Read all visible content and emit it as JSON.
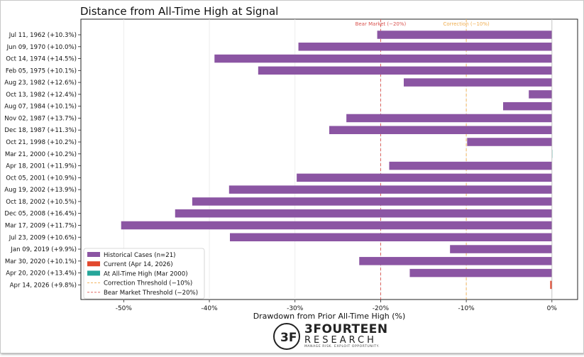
{
  "chart_data": {
    "type": "bar",
    "orientation": "horizontal",
    "title": "Distance from All-Time High at Signal",
    "xlabel": "Drawdown from Prior All-Time High (%)",
    "xlim": [
      -55,
      3
    ],
    "xticks": [
      "-50%",
      "-40%",
      "-30%",
      "-20%",
      "-10%",
      "0%"
    ],
    "xtick_values": [
      -50,
      -40,
      -30,
      -20,
      -10,
      0
    ],
    "grid": true,
    "legend_placement": "lower-left",
    "categories": [
      "Jul 11, 1962  (+10.3%)",
      "Jun 09, 1970  (+10.0%)",
      "Oct 14, 1974  (+14.5%)",
      "Feb 05, 1975  (+10.1%)",
      "Aug 23, 1982  (+12.6%)",
      "Oct 13, 1982  (+12.4%)",
      "Aug 07, 1984  (+10.1%)",
      "Nov 02, 1987  (+13.7%)",
      "Dec 18, 1987  (+11.3%)",
      "Oct 21, 1998  (+10.2%)",
      "Mar 21, 2000  (+10.2%)",
      "Apr 18, 2001  (+11.9%)",
      "Oct 05, 2001  (+10.9%)",
      "Aug 19, 2002  (+13.9%)",
      "Oct 18, 2002  (+10.5%)",
      "Dec 05, 2008  (+16.4%)",
      "Mar 17, 2009  (+11.7%)",
      "Jul 23, 2009  (+10.6%)",
      "Jan 09, 2019  (+9.9%)",
      "Mar 30, 2020  (+10.1%)",
      "Apr 20, 2020  (+13.4%)",
      "Apr 14, 2026  (+9.8%)"
    ],
    "values": [
      -20.4,
      -29.6,
      -39.4,
      -34.3,
      -17.3,
      -2.7,
      -5.7,
      -24.0,
      -26.0,
      -9.9,
      0.0,
      -19.0,
      -29.8,
      -37.7,
      -42.0,
      -44.0,
      -50.3,
      -37.6,
      -11.9,
      -22.5,
      -16.6,
      -0.2
    ],
    "bar_colors": [
      "#8b55a3",
      "#8b55a3",
      "#8b55a3",
      "#8b55a3",
      "#8b55a3",
      "#8b55a3",
      "#8b55a3",
      "#8b55a3",
      "#8b55a3",
      "#8b55a3",
      "#26a69a",
      "#8b55a3",
      "#8b55a3",
      "#8b55a3",
      "#8b55a3",
      "#8b55a3",
      "#8b55a3",
      "#8b55a3",
      "#8b55a3",
      "#8b55a3",
      "#8b55a3",
      "#e2482e"
    ],
    "thresholds": [
      {
        "name": "Bear Market Threshold (−20%)",
        "label": "Bear Market (−20%)",
        "value": -20,
        "color": "#d9534f"
      },
      {
        "name": "Correction Threshold (−10%)",
        "label": "Correction (−10%)",
        "value": -10,
        "color": "#f0ad4e"
      }
    ],
    "legend": [
      {
        "label": "Historical Cases (n=21)",
        "kind": "patch",
        "color": "#8b55a3"
      },
      {
        "label": "Current (Apr 14, 2026)",
        "kind": "patch",
        "color": "#e2482e"
      },
      {
        "label": "At All-Time High (Mar 2000)",
        "kind": "patch",
        "color": "#26a69a"
      },
      {
        "label": "Correction Threshold (−10%)",
        "kind": "line",
        "color": "#f0ad4e"
      },
      {
        "label": "Bear Market Threshold (−20%)",
        "kind": "line",
        "color": "#d9534f"
      }
    ]
  },
  "brand": {
    "name": "3FOURTEEN",
    "sub": "RESEARCH",
    "tagline": "MANAGE RISK. EXPLOIT OPPORTUNITY."
  }
}
